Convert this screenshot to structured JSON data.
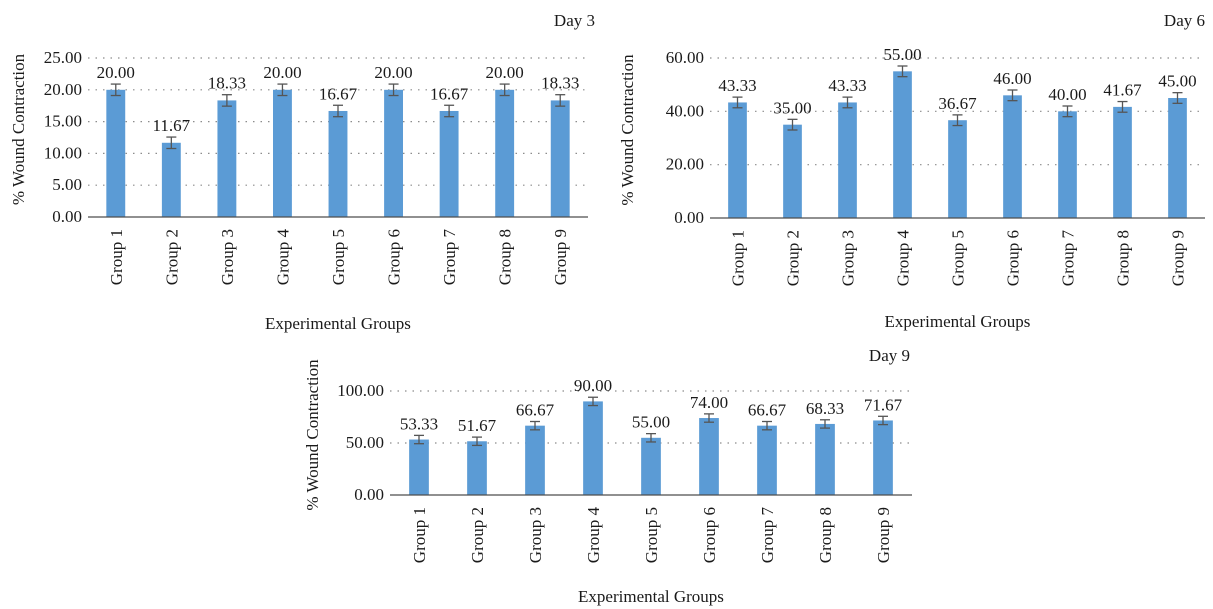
{
  "chart_data": [
    {
      "type": "bar",
      "title": "Day 3",
      "xlabel": "Experimental Groups",
      "ylabel": "% Wound Contraction",
      "categories": [
        "Group 1",
        "Group 2",
        "Group 3",
        "Group 4",
        "Group 5",
        "Group 6",
        "Group 7",
        "Group 8",
        "Group 9"
      ],
      "values": [
        20.0,
        11.67,
        18.33,
        20.0,
        16.67,
        20.0,
        16.67,
        20.0,
        18.33
      ],
      "value_labels": [
        "20.00",
        "11.67",
        "18.33",
        "20.00",
        "16.67",
        "20.00",
        "16.67",
        "20.00",
        "18.33"
      ],
      "errors": [
        0.9,
        0.9,
        0.9,
        0.9,
        0.9,
        0.9,
        0.9,
        0.9,
        0.9
      ],
      "ylim": [
        0,
        25
      ],
      "yticks": [
        0,
        5,
        10,
        15,
        20,
        25
      ],
      "ytick_labels": [
        "0.00",
        "5.00",
        "10.00",
        "15.00",
        "20.00",
        "25.00"
      ],
      "grid": "dotted horizontal",
      "color": "#5b9bd5"
    },
    {
      "type": "bar",
      "title": "Day 6",
      "xlabel": "Experimental Groups",
      "ylabel": "% Wound Contraction",
      "categories": [
        "Group 1",
        "Group 2",
        "Group 3",
        "Group 4",
        "Group 5",
        "Group 6",
        "Group 7",
        "Group 8",
        "Group 9"
      ],
      "values": [
        43.33,
        35.0,
        43.33,
        55.0,
        36.67,
        46.0,
        40.0,
        41.67,
        45.0
      ],
      "value_labels": [
        "43.33",
        "35.00",
        "43.33",
        "55.00",
        "36.67",
        "46.00",
        "40.00",
        "41.67",
        "45.00"
      ],
      "errors": [
        2,
        2,
        2,
        2,
        2,
        2,
        2,
        2,
        2
      ],
      "ylim": [
        0,
        60
      ],
      "yticks": [
        0,
        20,
        40,
        60
      ],
      "ytick_labels": [
        "0.00",
        "20.00",
        "40.00",
        "60.00"
      ],
      "grid": "dotted horizontal",
      "color": "#5b9bd5"
    },
    {
      "type": "bar",
      "title": "Day 9",
      "xlabel": "Experimental Groups",
      "ylabel": "% Wound Contraction",
      "categories": [
        "Group 1",
        "Group 2",
        "Group 3",
        "Group 4",
        "Group 5",
        "Group 6",
        "Group 7",
        "Group 8",
        "Group 9"
      ],
      "values": [
        53.33,
        51.67,
        66.67,
        90.0,
        55.0,
        74.0,
        66.67,
        68.33,
        71.67
      ],
      "value_labels": [
        "53.33",
        "51.67",
        "66.67",
        "90.00",
        "55.00",
        "74.00",
        "66.67",
        "68.33",
        "71.67"
      ],
      "errors": [
        4,
        4,
        4,
        4,
        4,
        4,
        4,
        4,
        4
      ],
      "ylim": [
        0,
        100
      ],
      "yticks": [
        0,
        50,
        100
      ],
      "ytick_labels": [
        "0.00",
        "50.00",
        "100.00"
      ],
      "grid": "dotted horizontal",
      "color": "#5b9bd5"
    }
  ]
}
